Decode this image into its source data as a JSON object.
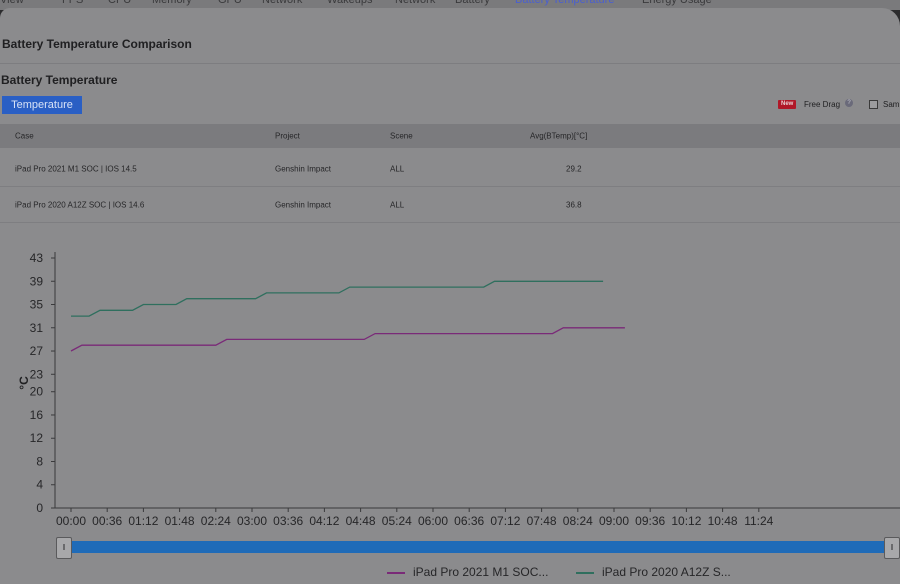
{
  "nav": {
    "tabs": [
      "View",
      "FPS",
      "CPU",
      "Memory",
      "GPU",
      "Network",
      "Wakeups",
      "Network",
      "Battery",
      "Battery Temperature",
      "Energy Usage"
    ],
    "active_tab": "Battery Temperature"
  },
  "page": {
    "title": "Battery Temperature Comparison",
    "section_title": "Battery Temperature",
    "temperature_button": "Temperature",
    "new_badge": "New",
    "free_drag_label": "Free Drag",
    "help_icon_glyph": "?",
    "same_label": "Sam"
  },
  "table": {
    "headers": {
      "case": "Case",
      "project": "Project",
      "scene": "Scene",
      "avg": "Avg(BTemp)[°C]"
    },
    "rows": [
      {
        "case": "iPad Pro 2021 M1 SOC | IOS 14.5",
        "project": "Genshin Impact",
        "scene": "ALL",
        "avg": "29.2"
      },
      {
        "case": "iPad Pro 2020 A12Z SOC | IOS 14.6",
        "project": "Genshin Impact",
        "scene": "ALL",
        "avg": "36.8"
      }
    ]
  },
  "chart_data": {
    "type": "line",
    "title": "",
    "xlabel": "",
    "ylabel": "°C",
    "ylim": [
      0,
      43
    ],
    "y_ticks": [
      "0",
      "4",
      "8",
      "12",
      "16",
      "20",
      "23",
      "27",
      "31",
      "35",
      "39",
      "43"
    ],
    "x_ticks": [
      "00:00",
      "00:36",
      "01:12",
      "01:48",
      "02:24",
      "03:00",
      "03:36",
      "04:12",
      "04:48",
      "05:24",
      "06:00",
      "06:36",
      "07:12",
      "07:48",
      "08:24",
      "09:00",
      "09:36",
      "10:12",
      "10:48",
      "11:24"
    ],
    "series": [
      {
        "name": "iPad Pro 2021 M1 SOC...",
        "color": "#7a2a78",
        "points": [
          [
            0,
            27
          ],
          [
            0.3,
            28
          ],
          [
            4.0,
            28
          ],
          [
            4.3,
            29
          ],
          [
            8.1,
            29
          ],
          [
            8.4,
            30
          ],
          [
            13.3,
            30
          ],
          [
            13.6,
            31
          ],
          [
            15.3,
            31
          ]
        ]
      },
      {
        "name": "iPad Pro 2020 A12Z S...",
        "color": "#2f6f5e",
        "points": [
          [
            0,
            33
          ],
          [
            0.5,
            33
          ],
          [
            0.8,
            34
          ],
          [
            1.7,
            34
          ],
          [
            2.0,
            35
          ],
          [
            2.9,
            35
          ],
          [
            3.2,
            36
          ],
          [
            5.1,
            36
          ],
          [
            5.4,
            37
          ],
          [
            7.4,
            37
          ],
          [
            7.7,
            38
          ],
          [
            11.4,
            38
          ],
          [
            11.7,
            39
          ],
          [
            14.7,
            39
          ]
        ]
      }
    ],
    "legend_position": "bottom"
  },
  "colors": {
    "accent_button": "#2a5fc4",
    "slider": "#1f6bb8",
    "badge": "#b01828"
  }
}
